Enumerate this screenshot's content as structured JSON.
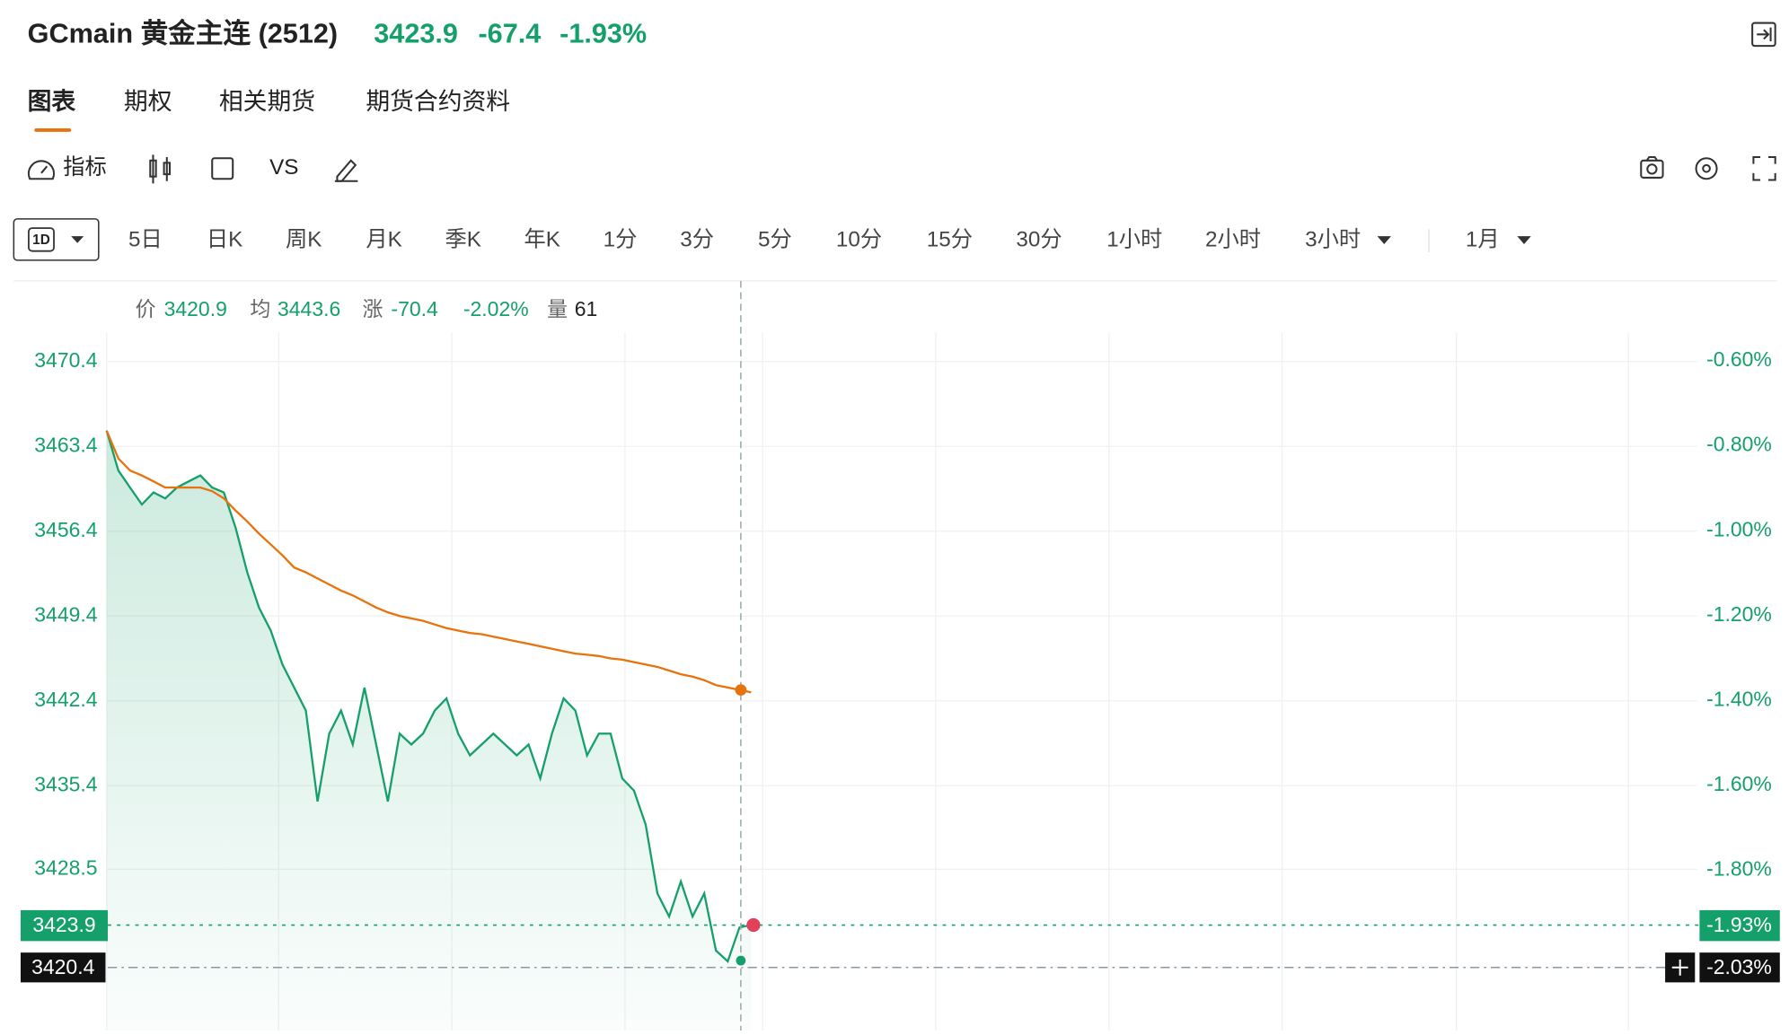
{
  "header": {
    "title": "GCmain 黄金主连 (2512)",
    "price": 3423.9,
    "change": -67.4,
    "change_pct": "-1.93%"
  },
  "tabs": [
    "图表",
    "期权",
    "相关期货",
    "期货合约资料"
  ],
  "toolbar": {
    "indicator": "指标",
    "compare": "VS"
  },
  "periods": {
    "current": "1D",
    "items": [
      "5日",
      "日K",
      "周K",
      "月K",
      "季K",
      "年K",
      "1分",
      "3分",
      "5分",
      "10分",
      "15分",
      "30分",
      "1小时",
      "2小时",
      "3小时"
    ],
    "range": "1月"
  },
  "info": {
    "price_label": "价",
    "price": 3420.9,
    "avg_label": "均",
    "avg": 3443.6,
    "chg_label": "涨",
    "chg": -70.4,
    "pct": "-2.02%",
    "vol_label": "量",
    "vol": 61
  },
  "chart_data": {
    "type": "line",
    "categories": [
      null,
      null,
      null,
      null,
      null,
      null,
      null,
      null,
      null,
      null,
      null,
      null,
      null,
      null,
      null,
      null,
      null,
      null,
      null,
      null,
      null,
      null,
      null,
      null,
      null,
      null,
      null,
      null,
      null,
      null,
      null,
      null,
      null,
      null,
      null,
      null,
      null,
      null,
      null,
      null,
      null,
      null,
      null,
      null,
      null,
      null,
      null,
      null,
      null,
      null,
      null,
      null,
      null,
      null,
      null,
      null
    ],
    "series": [
      {
        "name": "价",
        "color": "#15a06b",
        "values": [
          3464.7,
          3461.4,
          3460.0,
          3458.6,
          3459.6,
          3459.1,
          3460.0,
          3460.5,
          3461.0,
          3460.0,
          3459.6,
          3456.7,
          3453.0,
          3450.1,
          3448.2,
          3445.4,
          3443.5,
          3441.6,
          3434.1,
          3439.7,
          3441.6,
          3438.8,
          3443.5,
          3438.8,
          3434.1,
          3439.7,
          3438.8,
          3439.7,
          3441.6,
          3442.6,
          3439.7,
          3437.9,
          3438.8,
          3439.7,
          3438.8,
          3437.9,
          3438.8,
          3436.0,
          3439.7,
          3442.6,
          3441.6,
          3437.9,
          3439.7,
          3439.7,
          3436.0,
          3435.0,
          3432.2,
          3426.5,
          3424.6,
          3427.5,
          3424.6,
          3426.5,
          3421.8,
          3420.9,
          3423.7,
          3423.9
        ]
      },
      {
        "name": "均",
        "color": "#e8720c",
        "values": [
          3464.7,
          3462.4,
          3461.4,
          3461.0,
          3460.5,
          3460.0,
          3460.0,
          3460.0,
          3460.0,
          3459.7,
          3459.1,
          3458.1,
          3457.2,
          3456.2,
          3455.3,
          3454.4,
          3453.4,
          3453.0,
          3452.5,
          3452.0,
          3451.5,
          3451.1,
          3450.6,
          3450.1,
          3449.7,
          3449.4,
          3449.2,
          3449.0,
          3448.7,
          3448.4,
          3448.2,
          3448.0,
          3447.9,
          3447.7,
          3447.5,
          3447.3,
          3447.1,
          3446.9,
          3446.7,
          3446.5,
          3446.3,
          3446.2,
          3446.1,
          3445.9,
          3445.8,
          3445.6,
          3445.4,
          3445.2,
          3444.9,
          3444.6,
          3444.4,
          3444.1,
          3443.7,
          3443.5,
          3443.3,
          3443.1
        ]
      }
    ],
    "ylim": [
      3415.2,
      3472.8
    ],
    "yticks": [
      3428.5,
      3435.4,
      3442.4,
      3449.4,
      3456.4,
      3463.4,
      3470.4
    ],
    "y2lim": [
      -2.177,
      -0.533
    ],
    "y2ticks": [
      {
        "value": -1.8,
        "label": "-1.80%"
      },
      {
        "value": -1.6,
        "label": "-1.60%"
      },
      {
        "value": -1.4,
        "label": "-1.40%"
      },
      {
        "value": -1.2,
        "label": "-1.20%"
      },
      {
        "value": -1.0,
        "label": "-1.00%"
      },
      {
        "value": -0.8,
        "label": "-0.80%"
      },
      {
        "value": -0.6,
        "label": "-0.60%"
      }
    ],
    "last": {
      "value": 3423.9,
      "label": "-1.93%"
    },
    "crosshair": {
      "value": 3420.4,
      "label": "-2.03%"
    },
    "grid": true
  }
}
